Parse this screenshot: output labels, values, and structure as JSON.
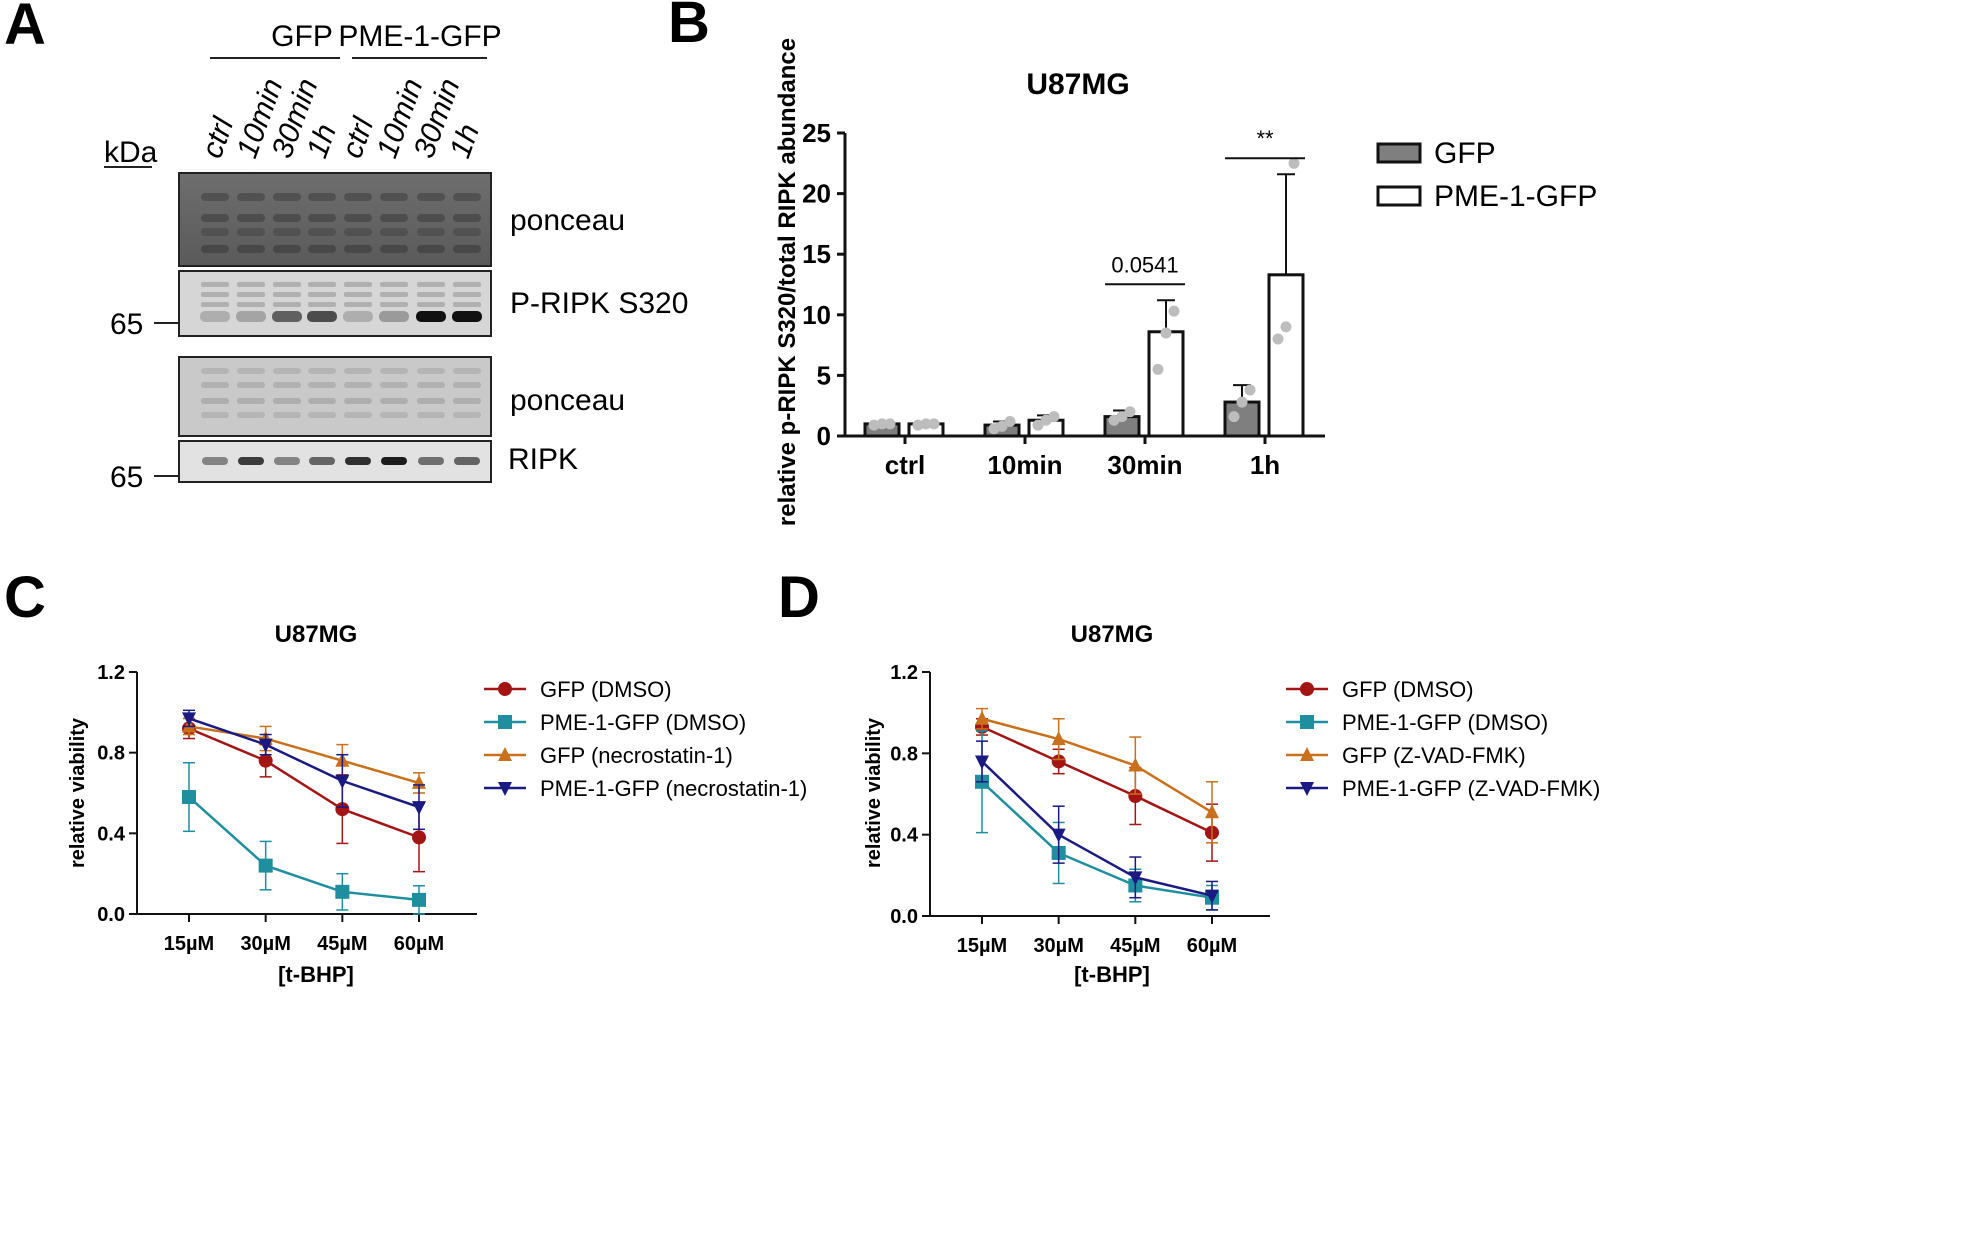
{
  "panelA": {
    "letter": "A",
    "group_gfp": "GFP",
    "group_pme": "PME-1-GFP",
    "kda": "kDa",
    "lanes": [
      "ctrl",
      "10min",
      "30min",
      "1h",
      "ctrl",
      "10min",
      "30min",
      "1h"
    ],
    "blots": [
      {
        "name": "ponceau"
      },
      {
        "name": "P-RIPK S320",
        "marker": "65"
      },
      {
        "name": "ponceau"
      },
      {
        "name": "RIPK",
        "marker": "65"
      }
    ],
    "ripk_band_intensity": [
      0.45,
      0.8,
      0.45,
      0.6,
      0.85,
      0.95,
      0.55,
      0.6
    ],
    "pripk_band_intensity": [
      0.2,
      0.25,
      0.6,
      0.7,
      0.2,
      0.3,
      1.0,
      1.0
    ]
  },
  "panelB": {
    "letter": "B",
    "legend": [
      {
        "name": "GFP",
        "fill": "#7f7f7f"
      },
      {
        "name": "PME-1-GFP",
        "fill": "#ffffff"
      }
    ]
  },
  "panelC": {
    "letter": "C",
    "legend": [
      "GFP (DMSO)",
      "PME-1-GFP (DMSO)",
      "GFP (necrostatin-1)",
      "PME-1-GFP (necrostatin-1)"
    ]
  },
  "panelD": {
    "letter": "D",
    "legend": [
      "GFP (DMSO)",
      "PME-1-GFP (DMSO)",
      "GFP (Z-VAD-FMK)",
      "PME-1-GFP (Z-VAD-FMK)"
    ]
  },
  "colors": {
    "red": "#a31515",
    "teal": "#1f8fa0",
    "orange": "#c8701b",
    "navy": "#1a1a80",
    "gray_dot": "#bdbdbd"
  },
  "chart_data": [
    {
      "id": "B",
      "type": "bar",
      "title": "U87MG",
      "xlabel": "",
      "ylabel": "relative p-RIPK S320/total RIPK abundance",
      "ylim": [
        0,
        25
      ],
      "yticks": [
        "0",
        "5",
        "10",
        "15",
        "20",
        "25"
      ],
      "categories": [
        "ctrl",
        "10min",
        "30min",
        "1h"
      ],
      "series": [
        {
          "name": "GFP",
          "values": [
            1.0,
            0.9,
            1.6,
            2.8
          ],
          "errors": [
            0.1,
            0.3,
            0.5,
            1.4
          ],
          "points": [
            [
              0.9,
              1.0,
              1.0
            ],
            [
              0.6,
              0.8,
              1.2
            ],
            [
              1.3,
              1.6,
              2.0
            ],
            [
              1.6,
              2.8,
              3.8
            ]
          ]
        },
        {
          "name": "PME-1-GFP",
          "values": [
            1.0,
            1.3,
            8.6,
            13.3
          ],
          "errors": [
            0.1,
            0.4,
            2.6,
            8.3
          ],
          "points": [
            [
              0.9,
              1.0,
              1.0
            ],
            [
              0.9,
              1.3,
              1.6
            ],
            [
              5.5,
              8.5,
              10.3
            ],
            [
              8.0,
              9.0,
              22.5
            ]
          ]
        }
      ],
      "annotations": [
        {
          "category": "30min",
          "text": "0.0541"
        },
        {
          "category": "1h",
          "text": "**"
        }
      ]
    },
    {
      "id": "C",
      "type": "line",
      "title": "U87MG",
      "xlabel": "[t-BHP]",
      "ylabel": "relative viability",
      "ylim": [
        0,
        1.2
      ],
      "yticks": [
        "0.0",
        "0.4",
        "0.8",
        "1.2"
      ],
      "x": [
        "15µM",
        "30µM",
        "45µM",
        "60µM"
      ],
      "series": [
        {
          "name": "GFP (DMSO)",
          "values": [
            0.92,
            0.76,
            0.52,
            0.38
          ],
          "errors": [
            0.05,
            0.08,
            0.17,
            0.17
          ]
        },
        {
          "name": "PME-1-GFP (DMSO)",
          "values": [
            0.58,
            0.24,
            0.11,
            0.07
          ],
          "errors": [
            0.17,
            0.12,
            0.09,
            0.07
          ]
        },
        {
          "name": "GFP (necrostatin-1)",
          "values": [
            0.93,
            0.87,
            0.76,
            0.65
          ],
          "errors": [
            0.04,
            0.06,
            0.08,
            0.05
          ]
        },
        {
          "name": "PME-1-GFP (necrostatin-1)",
          "values": [
            0.97,
            0.84,
            0.66,
            0.53
          ],
          "errors": [
            0.04,
            0.05,
            0.13,
            0.11
          ]
        }
      ]
    },
    {
      "id": "D",
      "type": "line",
      "title": "U87MG",
      "xlabel": "[t-BHP]",
      "ylabel": "relative viability",
      "ylim": [
        0,
        1.2
      ],
      "yticks": [
        "0.0",
        "0.4",
        "0.8",
        "1.2"
      ],
      "x": [
        "15µM",
        "30µM",
        "45µM",
        "60µM"
      ],
      "series": [
        {
          "name": "GFP (DMSO)",
          "values": [
            0.93,
            0.76,
            0.59,
            0.41
          ],
          "errors": [
            0.04,
            0.06,
            0.14,
            0.14
          ]
        },
        {
          "name": "PME-1-GFP (DMSO)",
          "values": [
            0.66,
            0.31,
            0.15,
            0.09
          ],
          "errors": [
            0.25,
            0.15,
            0.08,
            0.06
          ]
        },
        {
          "name": "GFP (Z-VAD-FMK)",
          "values": [
            0.97,
            0.87,
            0.74,
            0.51
          ],
          "errors": [
            0.05,
            0.1,
            0.14,
            0.15
          ]
        },
        {
          "name": "PME-1-GFP (Z-VAD-FMK)",
          "values": [
            0.76,
            0.4,
            0.19,
            0.1
          ],
          "errors": [
            0.1,
            0.14,
            0.1,
            0.07
          ]
        }
      ]
    }
  ]
}
